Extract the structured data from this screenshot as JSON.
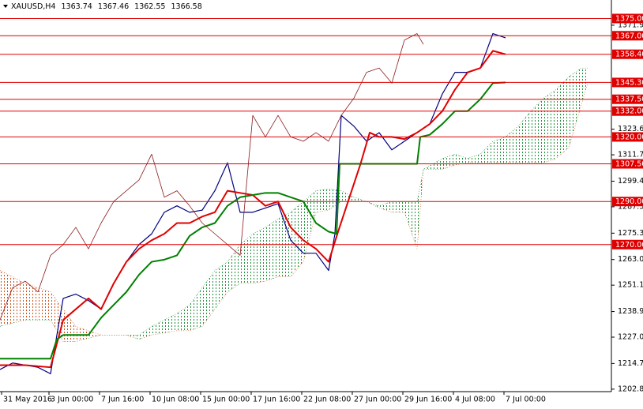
{
  "chart_data": {
    "type": "ichimoku",
    "title": "XAUUSD,H4",
    "ohlc": [
      1363.74,
      1367.46,
      1362.55,
      1366.58
    ],
    "xlim": [
      0,
      193.5
    ],
    "ylim": [
      1201.7,
      1383.6
    ],
    "xticks": [
      {
        "value": 0.5,
        "label": "31 May 2016"
      },
      {
        "value": 15.5,
        "label": "3 Jun 00:00"
      },
      {
        "value": 31.5,
        "label": "7 Jun 16:00"
      },
      {
        "value": 47.5,
        "label": "10 Jun 08:00"
      },
      {
        "value": 63.5,
        "label": "15 Jun 00:00"
      },
      {
        "value": 79.5,
        "label": "17 Jun 16:00"
      },
      {
        "value": 95.5,
        "label": "22 Jun 08:00"
      },
      {
        "value": 111.5,
        "label": "27 Jun 00:00"
      },
      {
        "value": 127.5,
        "label": "29 Jun 16:00"
      },
      {
        "value": 143.5,
        "label": "4 Jul 08:00"
      },
      {
        "value": 159.5,
        "label": "7 Jul 00:00"
      }
    ],
    "yticks": [
      {
        "value": 1371.9,
        "label": "1371.90"
      },
      {
        "value": 1323.6,
        "label": "1323.60"
      },
      {
        "value": 1311.7,
        "label": "1311.70"
      },
      1299.45,
      1287.55,
      {
        "value": 1275.3,
        "label": "1275.30"
      },
      1263.05,
      1251.15,
      {
        "value": 1238.9,
        "label": "1238.90"
      },
      {
        "value": 1227,
        "label": "1227.00"
      },
      1214.75,
      1202.85
    ],
    "levels": [
      {
        "value": 1375,
        "label": "1375.00"
      },
      {
        "value": 1367,
        "label": "1367.00"
      },
      {
        "value": 1358.4,
        "label": "1358.40"
      },
      {
        "value": 1345.3,
        "label": "1345.30"
      },
      {
        "value": 1337.5,
        "label": "1337.50"
      },
      {
        "value": 1332,
        "label": "1332.00"
      },
      {
        "value": 1320,
        "label": "1320.00"
      },
      {
        "value": 1307.5,
        "label": "1307.50"
      },
      {
        "value": 1290,
        "label": "1290.00"
      },
      {
        "value": 1270,
        "label": "1270.00"
      }
    ],
    "level_color": "#e00000",
    "series": [
      {
        "color": "#000080",
        "width": 1.2,
        "x": [
          0,
          4,
          8,
          12,
          16,
          18,
          20,
          24,
          28,
          32,
          36,
          40,
          44,
          48,
          52,
          56,
          60,
          64,
          68,
          72,
          76,
          80,
          84,
          88,
          92,
          96,
          100,
          104,
          106,
          108,
          112,
          116,
          120,
          124,
          128,
          132,
          136,
          140,
          144,
          148,
          152,
          156,
          160
        ],
        "values": [
          1212,
          1215,
          1214,
          1213,
          1210,
          1228,
          1245,
          1247,
          1244,
          1240,
          1252,
          1262,
          1270,
          1275,
          1285,
          1288,
          1285,
          1286,
          1295,
          1308,
          1285,
          1285,
          1287,
          1289,
          1272,
          1266,
          1266,
          1258,
          1275,
          1330,
          1325,
          1318,
          1322,
          1314,
          1318,
          1322,
          1326,
          1340,
          1350,
          1350,
          1352,
          1368,
          1366
        ]
      },
      {
        "color": "#e00000",
        "width": 2,
        "x": [
          0,
          8,
          16,
          20,
          24,
          28,
          32,
          36,
          40,
          44,
          48,
          52,
          56,
          60,
          64,
          68,
          72,
          76,
          80,
          84,
          88,
          92,
          96,
          100,
          104,
          107,
          114,
          117,
          120,
          124,
          128,
          132,
          136,
          140,
          144,
          148,
          152,
          156,
          160
        ],
        "values": [
          1214,
          1214,
          1213,
          1235,
          1240,
          1245,
          1240,
          1252,
          1262,
          1268,
          1272,
          1275,
          1280,
          1280,
          1283,
          1285,
          1295,
          1294,
          1293,
          1288,
          1290,
          1278,
          1272,
          1268,
          1262,
          1276,
          1307,
          1322,
          1320,
          1320,
          1319,
          1322,
          1326,
          1332,
          1342,
          1350,
          1352,
          1360,
          1358.4
        ]
      },
      {
        "color": "#008000",
        "width": 2,
        "x": [
          0,
          16,
          18,
          20,
          28,
          32,
          36,
          40,
          44,
          48,
          52,
          56,
          60,
          64,
          68,
          72,
          76,
          80,
          84,
          88,
          92,
          96,
          100,
          104,
          106.5,
          107.5,
          132,
          133,
          136,
          140,
          144,
          148,
          152,
          156,
          160
        ],
        "values": [
          1217,
          1217,
          1226,
          1228,
          1228,
          1236,
          1242,
          1248,
          1256,
          1262,
          1263,
          1265,
          1274,
          1278,
          1280,
          1288,
          1292,
          1293,
          1294,
          1294,
          1292,
          1290,
          1280,
          1276,
          1275,
          1307.5,
          1307.5,
          1320,
          1321,
          1326,
          1332,
          1332,
          1337.5,
          1345,
          1345.3
        ]
      },
      {
        "color": "#8b1a1a",
        "width": 0.8,
        "x": [
          0,
          4,
          8,
          12,
          16,
          20,
          24,
          28,
          32,
          36,
          40,
          44,
          48,
          52,
          56,
          60,
          64,
          68,
          72,
          76,
          80,
          84,
          88,
          92,
          96,
          100,
          104,
          108,
          112,
          116,
          120,
          124,
          128,
          132,
          134
        ],
        "values": [
          1235,
          1250,
          1253,
          1248,
          1265,
          1270,
          1278,
          1268,
          1280,
          1290,
          1295,
          1300,
          1312,
          1292,
          1295,
          1288,
          1280,
          1275,
          1270,
          1265,
          1330,
          1320,
          1330,
          1320,
          1318,
          1322,
          1318,
          1330,
          1338,
          1350,
          1352,
          1345,
          1365,
          1368,
          1363
        ]
      }
    ],
    "cloud": {
      "colors": [
        "#1f8f3a",
        "#d0501a"
      ],
      "x": [
        0,
        8,
        16,
        20,
        24,
        32,
        40,
        44,
        48,
        56,
        60,
        64,
        68,
        72,
        76,
        80,
        84,
        88,
        92,
        96,
        100,
        104,
        108,
        112,
        116,
        120,
        124,
        128,
        132,
        134,
        140,
        144,
        148,
        152,
        156,
        160,
        164,
        168,
        172,
        176,
        180,
        184,
        186
      ],
      "span_a": [
        1232,
        1235,
        1235,
        1225,
        1225,
        1228,
        1228,
        1228,
        1232,
        1238,
        1242,
        1250,
        1258,
        1262,
        1270,
        1275,
        1278,
        1282,
        1285,
        1290,
        1295,
        1296,
        1295,
        1292,
        1290,
        1288,
        1290,
        1290,
        1290,
        1305,
        1310,
        1312,
        1310,
        1312,
        1318,
        1320,
        1325,
        1332,
        1338,
        1342,
        1348,
        1352,
        1352
      ],
      "span_b": [
        1258,
        1252,
        1248,
        1240,
        1232,
        1228,
        1228,
        1226,
        1228,
        1230,
        1230,
        1232,
        1240,
        1248,
        1252,
        1252,
        1253,
        1255,
        1255,
        1262,
        1285,
        1286,
        1290,
        1290,
        1290,
        1287,
        1285,
        1285,
        1268,
        1305,
        1305,
        1307,
        1308,
        1308,
        1308,
        1308,
        1308,
        1308,
        1308,
        1310,
        1315,
        1335,
        1345
      ]
    }
  }
}
